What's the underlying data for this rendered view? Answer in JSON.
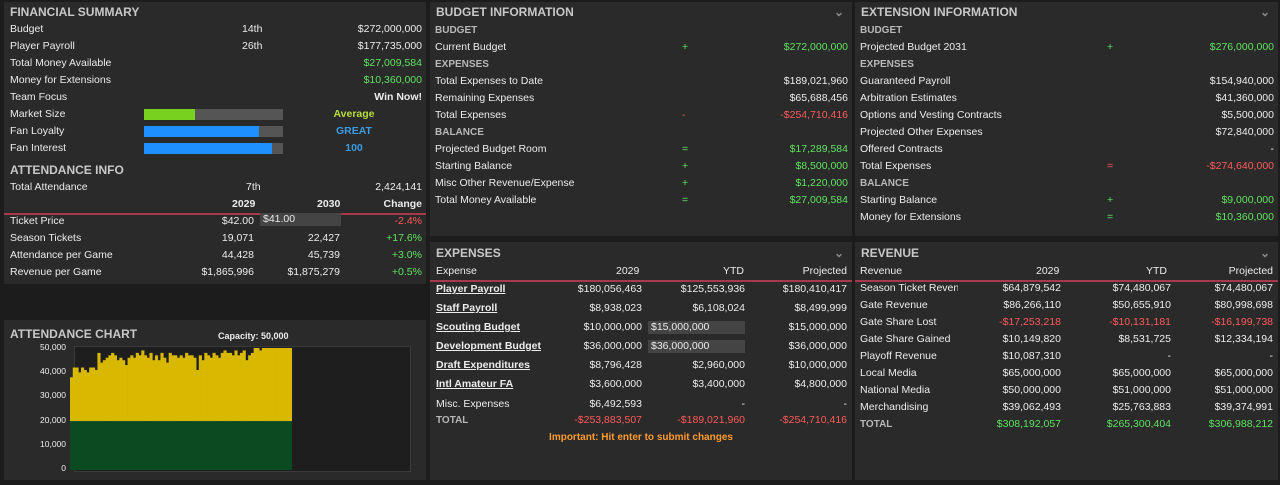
{
  "financial_summary": {
    "title": "FINANCIAL SUMMARY",
    "rows": [
      {
        "label": "Budget",
        "rank": "14th",
        "value": "$272,000,000"
      },
      {
        "label": "Player Payroll",
        "rank": "26th",
        "value": "$177,735,000"
      },
      {
        "label": "Total Money Available",
        "rank": "",
        "value": "$27,009,584"
      },
      {
        "label": "Money for Extensions",
        "rank": "",
        "value": "$10,360,000"
      },
      {
        "label": "Team Focus",
        "rank": "",
        "value": "Win Now!"
      }
    ],
    "bars": [
      {
        "label": "Market Size",
        "value": "Average",
        "fill": 0.37,
        "color": "#79d11f"
      },
      {
        "label": "Fan Loyalty",
        "value": "GREAT",
        "fill": 0.83,
        "color": "#1e90ff"
      },
      {
        "label": "Fan Interest",
        "value": "100",
        "fill": 0.92,
        "color": "#1e90ff"
      }
    ]
  },
  "attendance_info": {
    "title": "ATTENDANCE INFO",
    "total_label": "Total Attendance",
    "total_rank": "7th",
    "total_value": "2,424,141",
    "headers": [
      "2029",
      "2030",
      "Change"
    ],
    "rows": [
      {
        "label": "Ticket Price",
        "y1": "$42.00",
        "y2": "$41.00",
        "change": "-2.4%",
        "neg": true
      },
      {
        "label": "Season Tickets",
        "y1": "19,071",
        "y2": "22,427",
        "change": "+17.6%",
        "neg": false
      },
      {
        "label": "Attendance per Game",
        "y1": "44,428",
        "y2": "45,739",
        "change": "+3.0%",
        "neg": false
      },
      {
        "label": "Revenue per Game",
        "y1": "$1,865,996",
        "y2": "$1,875,279",
        "change": "+0.5%",
        "neg": false
      }
    ]
  },
  "attendance_chart": {
    "title": "ATTENDANCE CHART",
    "capacity_label": "Capacity: 50,000"
  },
  "chart_data": {
    "type": "bar",
    "title": "ATTENDANCE CHART",
    "annotation": "Capacity: 50,000",
    "ylim": [
      0,
      50000
    ],
    "yticks": [
      "50,000",
      "40,000",
      "30,000",
      "20,000",
      "10,000",
      "0"
    ],
    "threshold": 20000,
    "values": [
      38000,
      42000,
      42000,
      40000,
      42000,
      41000,
      40000,
      42000,
      42000,
      41000,
      48000,
      44000,
      45000,
      46000,
      47000,
      48000,
      47000,
      45000,
      46000,
      45000,
      43000,
      46000,
      47000,
      46000,
      48000,
      47000,
      49000,
      47000,
      46000,
      48000,
      45000,
      47000,
      45000,
      48000,
      46000,
      44000,
      48000,
      47000,
      47000,
      46000,
      47000,
      46000,
      48000,
      47000,
      47000,
      46000,
      41000,
      47000,
      45000,
      48000,
      47000,
      46000,
      48000,
      47000,
      46000,
      48000,
      49000,
      48000,
      48000,
      47000,
      49000,
      47000,
      48000,
      49000,
      45000,
      47000,
      48000,
      50000,
      50000,
      49000,
      50000,
      50000,
      50000,
      50000,
      50000,
      50000,
      50000,
      50000,
      50000,
      50000,
      50000
    ],
    "colors": {
      "above": "#d8b800",
      "below": "#0c4a22"
    }
  },
  "budget_info": {
    "title": "BUDGET INFORMATION",
    "rows": [
      {
        "type": "sub",
        "label": "BUDGET"
      },
      {
        "type": "row",
        "label": "Current Budget",
        "op": "+",
        "value": "$272,000,000",
        "color": "g"
      },
      {
        "type": "sub",
        "label": "EXPENSES"
      },
      {
        "type": "row",
        "label": "Total Expenses to Date",
        "op": "",
        "value": "$189,021,960",
        "color": ""
      },
      {
        "type": "row",
        "label": "Remaining Expenses",
        "op": "",
        "value": "$65,688,456",
        "color": ""
      },
      {
        "type": "row",
        "label": "Total Expenses",
        "op": "-",
        "value": "-$254,710,416",
        "color": "r"
      },
      {
        "type": "sub",
        "label": "BALANCE"
      },
      {
        "type": "row",
        "label": "Projected Budget Room",
        "op": "=",
        "value": "$17,289,584",
        "color": "g"
      },
      {
        "type": "row",
        "label": "Starting Balance",
        "op": "+",
        "value": "$8,500,000",
        "color": "g"
      },
      {
        "type": "row",
        "label": "Misc Other Revenue/Expense",
        "op": "+",
        "value": "$1,220,000",
        "color": "g"
      },
      {
        "type": "row",
        "label": "Total Money Available",
        "op": "=",
        "value": "$27,009,584",
        "color": "g"
      }
    ]
  },
  "extension_info": {
    "title": "EXTENSION INFORMATION",
    "rows": [
      {
        "type": "sub",
        "label": "BUDGET"
      },
      {
        "type": "row",
        "label": "Projected Budget 2031",
        "op": "+",
        "value": "$276,000,000",
        "color": "g"
      },
      {
        "type": "sub",
        "label": "EXPENSES"
      },
      {
        "type": "row",
        "label": "Guaranteed Payroll",
        "op": "",
        "value": "$154,940,000",
        "color": ""
      },
      {
        "type": "row",
        "label": "Arbitration Estimates",
        "op": "",
        "value": "$41,360,000",
        "color": ""
      },
      {
        "type": "row",
        "label": "Options and Vesting Contracts",
        "op": "",
        "value": "$5,500,000",
        "color": ""
      },
      {
        "type": "row",
        "label": "Projected Other Expenses",
        "op": "",
        "value": "$72,840,000",
        "color": ""
      },
      {
        "type": "row",
        "label": "Offered Contracts",
        "op": "",
        "value": "-",
        "color": ""
      },
      {
        "type": "row",
        "label": "Total Expenses",
        "op": "=",
        "value": "-$274,640,000",
        "color": "r"
      },
      {
        "type": "sub",
        "label": "BALANCE"
      },
      {
        "type": "row",
        "label": "Starting Balance",
        "op": "+",
        "value": "$9,000,000",
        "color": "g"
      },
      {
        "type": "row",
        "label": "Money for Extensions",
        "op": "=",
        "value": "$10,360,000",
        "color": "g"
      }
    ]
  },
  "expenses": {
    "title": "EXPENSES",
    "headers": [
      "Expense",
      "2029",
      "YTD",
      "Projected"
    ],
    "rows": [
      {
        "label": "Player Payroll",
        "c1": "$180,056,463",
        "c2": "$125,553,936",
        "c3": "$180,410,417",
        "link": true,
        "input": false
      },
      {
        "label": "Staff Payroll",
        "c1": "$8,938,023",
        "c2": "$6,108,024",
        "c3": "$8,499,999",
        "link": true,
        "input": false
      },
      {
        "label": "Scouting Budget",
        "c1": "$10,000,000",
        "c2": "$15,000,000",
        "c3": "$15,000,000",
        "link": true,
        "input": true
      },
      {
        "label": "Development Budget",
        "c1": "$36,000,000",
        "c2": "$36,000,000",
        "c3": "$36,000,000",
        "link": true,
        "input": true
      },
      {
        "label": "Draft Expenditures",
        "c1": "$8,796,428",
        "c2": "$2,960,000",
        "c3": "$10,000,000",
        "link": true,
        "input": false
      },
      {
        "label": "Intl Amateur FA",
        "c1": "$3,600,000",
        "c2": "$3,400,000",
        "c3": "$4,800,000",
        "link": true,
        "input": false
      },
      {
        "label": "Misc. Expenses",
        "c1": "$6,492,593",
        "c2": "-",
        "c3": "-",
        "link": false,
        "input": false
      }
    ],
    "total": {
      "label": "TOTAL",
      "c1": "-$253,883,507",
      "c2": "-$189,021,960",
      "c3": "-$254,710,416"
    },
    "note": "Important: Hit enter to submit changes"
  },
  "revenue": {
    "title": "REVENUE",
    "headers": [
      "Revenue",
      "2029",
      "YTD",
      "Projected"
    ],
    "rows": [
      {
        "label": "Season Ticket Revenue",
        "c1": "$64,879,542",
        "c2": "$74,480,067",
        "c3": "$74,480,067",
        "neg": false
      },
      {
        "label": "Gate Revenue",
        "c1": "$86,266,110",
        "c2": "$50,655,910",
        "c3": "$80,998,698",
        "neg": false
      },
      {
        "label": "Gate Share Lost",
        "c1": "-$17,253,218",
        "c2": "-$10,131,181",
        "c3": "-$16,199,738",
        "neg": true
      },
      {
        "label": "Gate Share Gained",
        "c1": "$10,149,820",
        "c2": "$8,531,725",
        "c3": "$12,334,194",
        "neg": false
      },
      {
        "label": "Playoff Revenue",
        "c1": "$10,087,310",
        "c2": "-",
        "c3": "-",
        "neg": false
      },
      {
        "label": "Local Media",
        "c1": "$65,000,000",
        "c2": "$65,000,000",
        "c3": "$65,000,000",
        "neg": false
      },
      {
        "label": "National Media",
        "c1": "$50,000,000",
        "c2": "$51,000,000",
        "c3": "$51,000,000",
        "neg": false
      },
      {
        "label": "Merchandising",
        "c1": "$39,062,493",
        "c2": "$25,763,883",
        "c3": "$39,374,991",
        "neg": false
      }
    ],
    "total": {
      "label": "TOTAL",
      "c1": "$308,192,057",
      "c2": "$265,300,404",
      "c3": "$306,988,212"
    }
  }
}
